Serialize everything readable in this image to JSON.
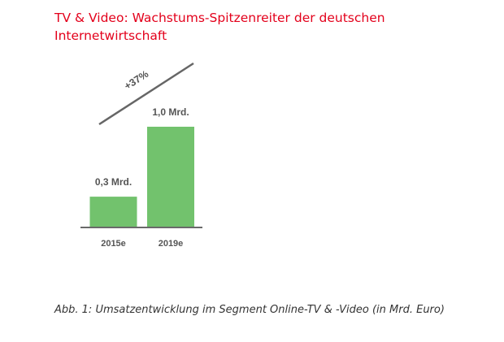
{
  "title": "TV & Video: Wachstums-Spitzenreiter der deutschen Internetwirtschaft",
  "caption": "Abb. 1: Umsatzentwicklung im Segment Online-TV & -Video (in Mrd. Euro)",
  "chart_data": {
    "type": "bar",
    "categories": [
      "2015e",
      "2019e"
    ],
    "values": [
      0.3,
      1.0
    ],
    "data_labels": [
      "0,3 Mrd.",
      "1,0 Mrd."
    ],
    "annotation": "+37%",
    "ylim": [
      0,
      1.0
    ],
    "grid": false,
    "colors": {
      "bar": "#72c26d",
      "baseline": "#555555",
      "arrow": "#666666",
      "label": "#555555",
      "title": "#e3001b"
    }
  }
}
